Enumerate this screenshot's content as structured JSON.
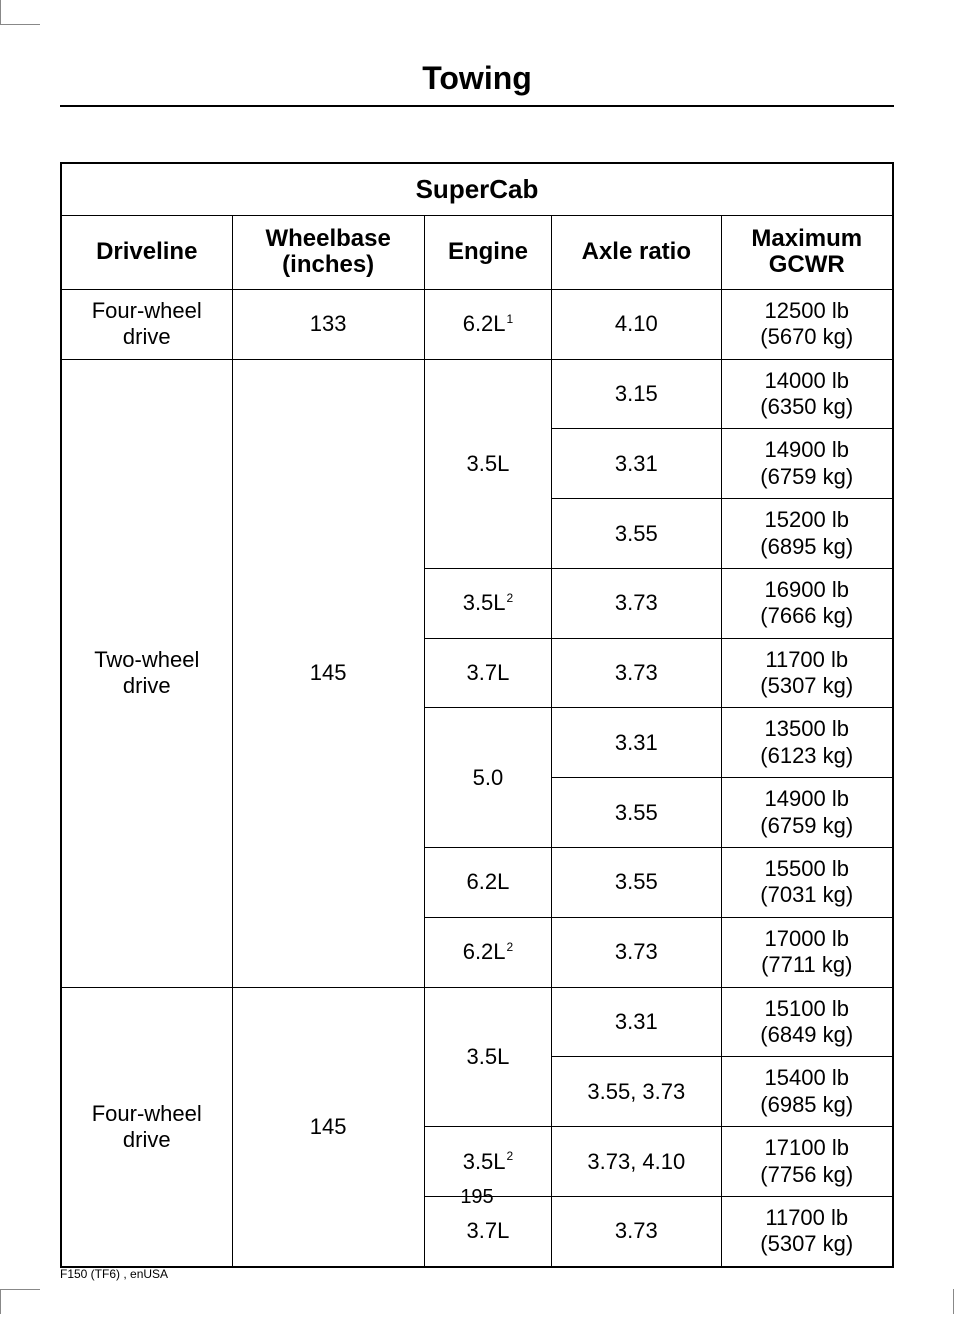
{
  "page": {
    "title": "Towing",
    "number": "195",
    "footer": "F150 (TF6) , enUSA"
  },
  "table": {
    "title": "SuperCab",
    "headers": {
      "driveline": "Driveline",
      "wheelbase": "Wheelbase (inches)",
      "wheelbase_line1": "Wheelbase",
      "wheelbase_line2": "(inches)",
      "engine": "Engine",
      "axle_ratio": "Axle ratio",
      "max_gcwr": "Maximum GCWR",
      "max_gcwr_line1": "Maximum",
      "max_gcwr_line2": "GCWR"
    },
    "rows": [
      {
        "driveline": "Four-wheel drive",
        "driveline_line1": "Four-wheel",
        "driveline_line2": "drive",
        "wheelbase": "133",
        "engine": "6.2L",
        "engine_sup": "1",
        "axle": "4.10",
        "gcwr_lb": "12500 lb",
        "gcwr_kg": "(5670 kg)"
      },
      {
        "driveline": "Two-wheel drive",
        "driveline_line1": "Two-wheel",
        "driveline_line2": "drive",
        "wheelbase": "145",
        "engine": "3.5L",
        "axle": "3.15",
        "gcwr_lb": "14000 lb",
        "gcwr_kg": "(6350 kg)"
      },
      {
        "axle": "3.31",
        "gcwr_lb": "14900 lb",
        "gcwr_kg": "(6759 kg)"
      },
      {
        "axle": "3.55",
        "gcwr_lb": "15200 lb",
        "gcwr_kg": "(6895 kg)"
      },
      {
        "engine": "3.5L",
        "engine_sup": "2",
        "axle": "3.73",
        "gcwr_lb": "16900 lb",
        "gcwr_kg": "(7666 kg)"
      },
      {
        "engine": "3.7L",
        "axle": "3.73",
        "gcwr_lb": "11700 lb",
        "gcwr_kg": "(5307 kg)"
      },
      {
        "engine": "5.0",
        "axle": "3.31",
        "gcwr_lb": "13500 lb",
        "gcwr_kg": "(6123 kg)"
      },
      {
        "axle": "3.55",
        "gcwr_lb": "14900 lb",
        "gcwr_kg": "(6759 kg)"
      },
      {
        "engine": "6.2L",
        "axle": "3.55",
        "gcwr_lb": "15500 lb",
        "gcwr_kg": "(7031 kg)"
      },
      {
        "engine": "6.2L",
        "engine_sup": "2",
        "axle": "3.73",
        "gcwr_lb": "17000 lb",
        "gcwr_kg": "(7711 kg)"
      },
      {
        "driveline": "Four-wheel drive",
        "driveline_line1": "Four-wheel",
        "driveline_line2": "drive",
        "wheelbase": "145",
        "engine": "3.5L",
        "axle": "3.31",
        "gcwr_lb": "15100 lb",
        "gcwr_kg": "(6849 kg)"
      },
      {
        "axle": "3.55, 3.73",
        "gcwr_lb": "15400 lb",
        "gcwr_kg": "(6985 kg)"
      },
      {
        "engine": "3.5L",
        "engine_sup": "2",
        "axle": "3.73, 4.10",
        "gcwr_lb": "17100 lb",
        "gcwr_kg": "(7756 kg)"
      },
      {
        "engine": "3.7L",
        "axle": "3.73",
        "gcwr_lb": "11700 lb",
        "gcwr_kg": "(5307 kg)"
      }
    ]
  }
}
